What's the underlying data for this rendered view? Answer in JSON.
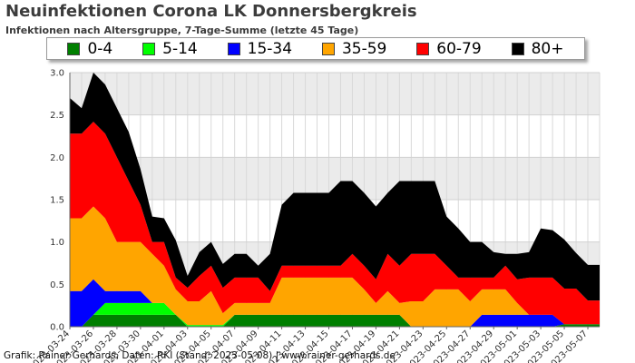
{
  "header": {
    "title": "Neuinfektionen Corona LK Donnersbergkreis",
    "subtitle": "Infektionen nach Altersgruppe, 7-Tage-Summe (letzte 45 Tage)"
  },
  "footer": {
    "credit": "Grafik: Rainer Gerhards, Daten: RKI (Stand: 2023-05-08) | www.rainer-gerhards.de"
  },
  "chart_data": {
    "type": "area",
    "stacked": true,
    "title": "Neuinfektionen Corona LK Donnersbergkreis",
    "subtitle": "Infektionen nach Altersgruppe, 7-Tage-Summe (letzte 45 Tage)",
    "xlabel": "",
    "ylabel": "",
    "ylim": [
      0,
      3.0
    ],
    "yticks": [
      "0.0",
      "0.5",
      "1.0",
      "1.5",
      "2.0",
      "2.5",
      "3.0"
    ],
    "grid": true,
    "legend_position": "top",
    "x": [
      "2023-03-24",
      "2023-03-25",
      "2023-03-26",
      "2023-03-27",
      "2023-03-28",
      "2023-03-29",
      "2023-03-30",
      "2023-03-31",
      "2023-04-01",
      "2023-04-02",
      "2023-04-03",
      "2023-04-04",
      "2023-04-05",
      "2023-04-06",
      "2023-04-07",
      "2023-04-08",
      "2023-04-09",
      "2023-04-10",
      "2023-04-11",
      "2023-04-12",
      "2023-04-13",
      "2023-04-14",
      "2023-04-15",
      "2023-04-16",
      "2023-04-17",
      "2023-04-18",
      "2023-04-19",
      "2023-04-20",
      "2023-04-21",
      "2023-04-22",
      "2023-04-23",
      "2023-04-24",
      "2023-04-25",
      "2023-04-26",
      "2023-04-27",
      "2023-04-28",
      "2023-04-29",
      "2023-04-30",
      "2023-05-01",
      "2023-05-02",
      "2023-05-03",
      "2023-05-04",
      "2023-05-05",
      "2023-05-06",
      "2023-05-07",
      "2023-05-08"
    ],
    "xtick_labels": [
      "2023-03-24",
      "2023-03-26",
      "2023-03-28",
      "2023-03-30",
      "2023-04-01",
      "2023-04-03",
      "2023-04-05",
      "2023-04-07",
      "2023-04-09",
      "2023-04-11",
      "2023-04-13",
      "2023-04-15",
      "2023-04-17",
      "2023-04-19",
      "2023-04-21",
      "2023-04-23",
      "2023-04-25",
      "2023-04-27",
      "2023-04-29",
      "2023-05-01",
      "2023-05-03",
      "2023-05-05",
      "2023-05-07"
    ],
    "series": [
      {
        "name": "0-4",
        "color": "#007f00",
        "values": [
          0,
          0,
          0.14,
          0.14,
          0.14,
          0.14,
          0.14,
          0.14,
          0.14,
          0.14,
          0,
          0,
          0,
          0,
          0.14,
          0.14,
          0.14,
          0.14,
          0.14,
          0.14,
          0.14,
          0.14,
          0.14,
          0.14,
          0.14,
          0.14,
          0.14,
          0.14,
          0.14,
          0,
          0,
          0,
          0,
          0,
          0,
          0,
          0,
          0,
          0,
          0,
          0,
          0,
          0.03,
          0.03,
          0.03,
          0.03
        ]
      },
      {
        "name": "5-14",
        "color": "#00ff00",
        "values": [
          0,
          0,
          0,
          0.14,
          0.14,
          0.14,
          0.14,
          0.14,
          0.14,
          0,
          0.02,
          0.02,
          0.02,
          0.02,
          0,
          0,
          0,
          0,
          0,
          0,
          0,
          0,
          0,
          0,
          0,
          0,
          0,
          0,
          0,
          0,
          0,
          0,
          0,
          0,
          0,
          0,
          0,
          0,
          0,
          0,
          0,
          0,
          0,
          0,
          0,
          0
        ]
      },
      {
        "name": "15-34",
        "color": "#0000ff",
        "values": [
          0.42,
          0.42,
          0.42,
          0.14,
          0.14,
          0.14,
          0.14,
          0,
          0,
          0,
          0,
          0,
          0,
          0,
          0,
          0,
          0,
          0,
          0,
          0,
          0,
          0,
          0,
          0,
          0,
          0,
          0,
          0,
          0,
          0,
          0,
          0,
          0,
          0,
          0,
          0.14,
          0.14,
          0.14,
          0.14,
          0.14,
          0.14,
          0.14,
          0,
          0,
          0,
          0
        ]
      },
      {
        "name": "35-59",
        "color": "#ffa500",
        "values": [
          0.86,
          0.86,
          0.86,
          0.86,
          0.58,
          0.58,
          0.58,
          0.58,
          0.44,
          0.3,
          0.28,
          0.28,
          0.4,
          0.14,
          0.14,
          0.14,
          0.14,
          0.14,
          0.44,
          0.44,
          0.44,
          0.44,
          0.44,
          0.44,
          0.44,
          0.3,
          0.14,
          0.28,
          0.14,
          0.3,
          0.3,
          0.44,
          0.44,
          0.44,
          0.3,
          0.3,
          0.3,
          0.3,
          0.14,
          0,
          0,
          0,
          0,
          0,
          0,
          0
        ]
      },
      {
        "name": "60-79",
        "color": "#ff0000",
        "values": [
          1.0,
          1.0,
          1.0,
          1.0,
          1.0,
          0.72,
          0.44,
          0.14,
          0.28,
          0.14,
          0.16,
          0.3,
          0.3,
          0.3,
          0.3,
          0.3,
          0.3,
          0.14,
          0.14,
          0.14,
          0.14,
          0.14,
          0.14,
          0.14,
          0.28,
          0.28,
          0.28,
          0.44,
          0.44,
          0.56,
          0.56,
          0.42,
          0.28,
          0.14,
          0.28,
          0.14,
          0.14,
          0.28,
          0.28,
          0.44,
          0.44,
          0.44,
          0.42,
          0.42,
          0.28,
          0.28
        ]
      },
      {
        "name": "80+",
        "color": "#000000",
        "values": [
          0.42,
          0.3,
          0.58,
          0.58,
          0.58,
          0.58,
          0.42,
          0.3,
          0.28,
          0.44,
          0.14,
          0.28,
          0.28,
          0.28,
          0.28,
          0.28,
          0.14,
          0.44,
          0.72,
          0.86,
          0.86,
          0.86,
          0.86,
          1.0,
          0.86,
          0.86,
          0.86,
          0.72,
          1.0,
          0.86,
          0.86,
          0.86,
          0.58,
          0.58,
          0.42,
          0.42,
          0.3,
          0.14,
          0.3,
          0.3,
          0.58,
          0.56,
          0.58,
          0.42,
          0.42,
          0.42
        ]
      }
    ]
  }
}
